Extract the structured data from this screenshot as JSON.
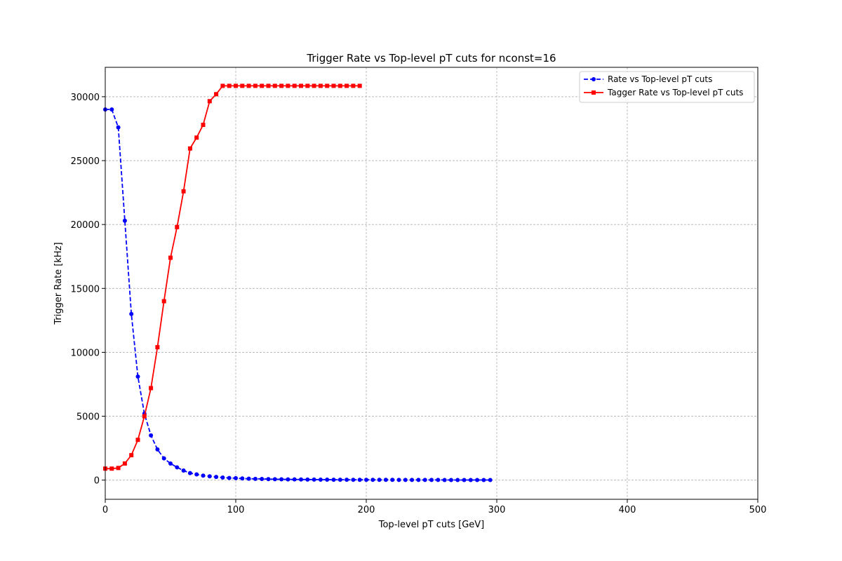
{
  "chart_data": {
    "type": "line",
    "title": "Trigger Rate vs Top-level pT cuts for nconst=16",
    "xlabel": "Top-level pT cuts [GeV]",
    "ylabel": "Trigger Rate [kHz]",
    "xlim": [
      0,
      500
    ],
    "ylim": [
      -1500,
      32300
    ],
    "xticks": [
      0,
      100,
      200,
      300,
      400,
      500
    ],
    "yticks": [
      0,
      5000,
      10000,
      15000,
      20000,
      25000,
      30000
    ],
    "grid": true,
    "legend_position": "top-right",
    "series": [
      {
        "name": "Rate vs Top-level pT cuts",
        "color": "#0000ff",
        "line_style": "dashed",
        "marker": "circle",
        "x": [
          0,
          5,
          10,
          15,
          20,
          25,
          30,
          35,
          40,
          45,
          50,
          55,
          60,
          65,
          70,
          75,
          80,
          85,
          90,
          95,
          100,
          105,
          110,
          115,
          120,
          125,
          130,
          135,
          140,
          145,
          150,
          155,
          160,
          165,
          170,
          175,
          180,
          185,
          190,
          195,
          200,
          205,
          210,
          215,
          220,
          225,
          230,
          235,
          240,
          245,
          250,
          255,
          260,
          265,
          270,
          275,
          280,
          285,
          290,
          295
        ],
        "y": [
          29000,
          29000,
          27600,
          20300,
          13000,
          8100,
          5200,
          3500,
          2400,
          1700,
          1300,
          1000,
          750,
          550,
          450,
          350,
          300,
          250,
          200,
          170,
          150,
          130,
          110,
          100,
          90,
          80,
          70,
          65,
          60,
          55,
          50,
          45,
          40,
          38,
          35,
          32,
          30,
          28,
          26,
          25,
          24,
          23,
          22,
          21,
          20,
          19,
          18,
          17,
          16,
          15,
          14,
          13,
          12,
          11,
          10,
          10,
          10,
          10,
          10,
          10
        ]
      },
      {
        "name": "Tagger Rate vs Top-level pT cuts",
        "color": "#ff0000",
        "line_style": "solid",
        "marker": "square",
        "x": [
          0,
          5,
          10,
          15,
          20,
          25,
          30,
          35,
          40,
          45,
          50,
          55,
          60,
          65,
          70,
          75,
          80,
          85,
          90,
          95,
          100,
          105,
          110,
          115,
          120,
          125,
          130,
          135,
          140,
          145,
          150,
          155,
          160,
          165,
          170,
          175,
          180,
          185,
          190,
          195
        ],
        "y": [
          900,
          900,
          950,
          1300,
          1950,
          3150,
          5000,
          7200,
          10400,
          14000,
          17400,
          19800,
          22600,
          25950,
          26800,
          27800,
          29650,
          30200,
          30850,
          30850,
          30850,
          30850,
          30850,
          30850,
          30850,
          30850,
          30850,
          30850,
          30850,
          30850,
          30850,
          30850,
          30850,
          30850,
          30850,
          30850,
          30850,
          30850,
          30850,
          30850
        ]
      }
    ]
  }
}
